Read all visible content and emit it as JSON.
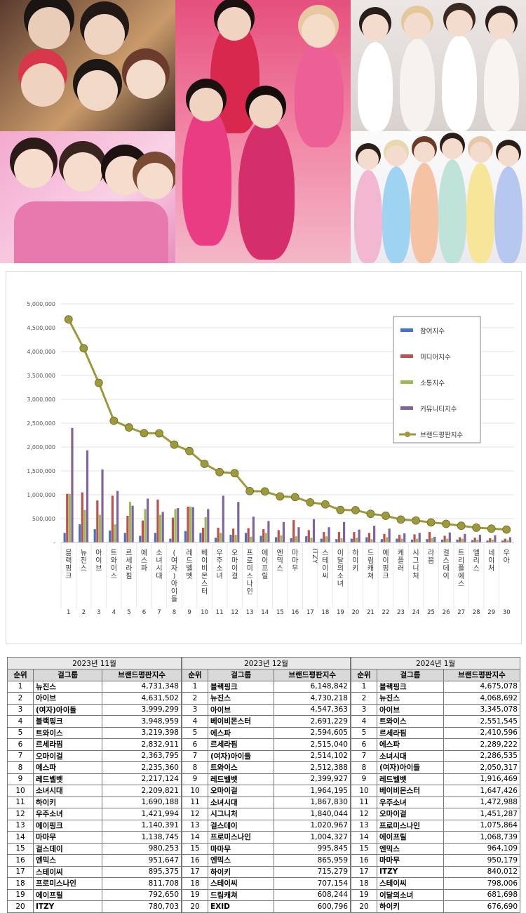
{
  "colors": {
    "participation": "#4472C4",
    "media": "#C0504D",
    "communication": "#9BBB59",
    "community": "#8064A2",
    "brand": "#9C9A3C"
  },
  "chart_data": {
    "type": "bar",
    "title": "",
    "ylim": [
      0,
      5000000
    ],
    "y_ticks": [
      "5,000,000",
      "4,500,000",
      "4,000,000",
      "3,500,000",
      "3,000,000",
      "2,500,000",
      "2,000,000",
      "1,500,000",
      "1,000,000",
      "500,000",
      "-"
    ],
    "legend_position": "top-right",
    "categories": [
      "블랙핑크",
      "뉴진스",
      "아이브",
      "트와이스",
      "르세라핌",
      "에스파",
      "소녀시대",
      "(여자)아이들",
      "레드벨벳",
      "베이비몬스터",
      "우주소녀",
      "오마이걸",
      "프로미스나인",
      "에이프릴",
      "엔믹스",
      "마마무",
      "ITZY",
      "스테이씨",
      "이달의소녀",
      "하이키",
      "드림캐쳐",
      "에이핑크",
      "케플러",
      "시그니처",
      "라붐",
      "걸스데이",
      "트리플에스",
      "엘리스",
      "네이처",
      "우아"
    ],
    "ranks": [
      "1",
      "2",
      "3",
      "4",
      "5",
      "6",
      "7",
      "8",
      "9",
      "10",
      "11",
      "12",
      "13",
      "14",
      "15",
      "16",
      "17",
      "18",
      "19",
      "20",
      "21",
      "22",
      "23",
      "24",
      "25",
      "26",
      "27",
      "28",
      "29",
      "30"
    ],
    "series": [
      {
        "name": "참여지수",
        "values": [
          200000,
          380000,
          280000,
          250000,
          200000,
          140000,
          200000,
          80000,
          240000,
          200000,
          100000,
          160000,
          200000,
          140000,
          110000,
          90000,
          130000,
          80000,
          70000,
          80000,
          110000,
          70000,
          80000,
          60000,
          70000,
          60000,
          60000,
          50000,
          40000,
          40000
        ]
      },
      {
        "name": "미디어지수",
        "values": [
          1020000,
          1050000,
          880000,
          980000,
          560000,
          460000,
          900000,
          520000,
          750000,
          310000,
          310000,
          290000,
          300000,
          280000,
          260000,
          470000,
          260000,
          220000,
          220000,
          220000,
          200000,
          180000,
          160000,
          170000,
          220000,
          140000,
          110000,
          100000,
          90000,
          80000
        ]
      },
      {
        "name": "소통지수",
        "values": [
          1020000,
          680000,
          580000,
          380000,
          850000,
          700000,
          580000,
          700000,
          750000,
          530000,
          200000,
          160000,
          120000,
          200000,
          150000,
          130000,
          100000,
          130000,
          90000,
          100000,
          70000,
          110000,
          80000,
          80000,
          90000,
          80000,
          80000,
          60000,
          60000,
          50000
        ]
      },
      {
        "name": "커뮤니티지수",
        "values": [
          2400000,
          1930000,
          1530000,
          1080000,
          770000,
          920000,
          640000,
          720000,
          740000,
          700000,
          980000,
          850000,
          540000,
          450000,
          430000,
          320000,
          490000,
          320000,
          430000,
          270000,
          350000,
          290000,
          190000,
          200000,
          120000,
          210000,
          180000,
          160000,
          150000,
          110000
        ]
      },
      {
        "name": "브랜드평판지수",
        "values": [
          4675078,
          4068692,
          3345078,
          2551545,
          2410596,
          2289222,
          2286535,
          2050317,
          1916469,
          1647426,
          1472988,
          1451287,
          1075864,
          1068739,
          964109,
          950179,
          840012,
          798006,
          681698,
          676690,
          600000,
          560000,
          480000,
          460000,
          420000,
          390000,
          350000,
          310000,
          290000,
          270000
        ]
      }
    ]
  },
  "tables": [
    {
      "month": "2023년 11월",
      "headers": [
        "순위",
        "걸그룹",
        "브랜드평판지수"
      ],
      "rows": [
        [
          "1",
          "뉴진스",
          "4,731,348"
        ],
        [
          "2",
          "아이브",
          "4,631,502"
        ],
        [
          "3",
          "(여자)아이들",
          "3,999,299"
        ],
        [
          "4",
          "블랙핑크",
          "3,948,959"
        ],
        [
          "5",
          "트와이스",
          "3,219,398"
        ],
        [
          "6",
          "르세라핌",
          "2,832,911"
        ],
        [
          "7",
          "오마이걸",
          "2,363,795"
        ],
        [
          "8",
          "에스파",
          "2,235,360"
        ],
        [
          "9",
          "레드벨벳",
          "2,217,124"
        ],
        [
          "10",
          "소녀시대",
          "2,209,821"
        ],
        [
          "11",
          "하이키",
          "1,690,188"
        ],
        [
          "12",
          "우주소녀",
          "1,421,994"
        ],
        [
          "13",
          "에이핑크",
          "1,140,391"
        ],
        [
          "14",
          "마마무",
          "1,138,745"
        ],
        [
          "15",
          "걸스데이",
          "980,253"
        ],
        [
          "16",
          "엔믹스",
          "951,647"
        ],
        [
          "17",
          "스테이씨",
          "895,375"
        ],
        [
          "18",
          "프로미스나인",
          "811,708"
        ],
        [
          "19",
          "에이프릴",
          "792,650"
        ],
        [
          "20",
          "ITZY",
          "780,703"
        ]
      ]
    },
    {
      "month": "2023년 12월",
      "headers": [
        "순위",
        "걸그룹",
        "브랜드평판지수"
      ],
      "rows": [
        [
          "1",
          "블랙핑크",
          "6,148,842"
        ],
        [
          "2",
          "뉴진스",
          "4,730,218"
        ],
        [
          "3",
          "아이브",
          "4,547,363"
        ],
        [
          "4",
          "베이비몬스터",
          "2,691,229"
        ],
        [
          "5",
          "에스파",
          "2,594,605"
        ],
        [
          "6",
          "르세라핌",
          "2,515,040"
        ],
        [
          "7",
          "(여자)아이들",
          "2,514,102"
        ],
        [
          "8",
          "트와이스",
          "2,512,388"
        ],
        [
          "9",
          "레드벨벳",
          "2,399,927"
        ],
        [
          "10",
          "오마이걸",
          "1,964,195"
        ],
        [
          "11",
          "소녀시대",
          "1,867,830"
        ],
        [
          "12",
          "시그니처",
          "1,840,044"
        ],
        [
          "13",
          "걸스데이",
          "1,020,967"
        ],
        [
          "14",
          "프로미스나인",
          "1,004,327"
        ],
        [
          "15",
          "마마무",
          "995,845"
        ],
        [
          "16",
          "엔믹스",
          "865,959"
        ],
        [
          "17",
          "하이키",
          "715,279"
        ],
        [
          "18",
          "스테이씨",
          "707,154"
        ],
        [
          "19",
          "드림캐쳐",
          "608,244"
        ],
        [
          "20",
          "EXID",
          "600,796"
        ]
      ]
    },
    {
      "month": "2024년 1월",
      "headers": [
        "순위",
        "걸그룹",
        "브랜드평판지수"
      ],
      "rows": [
        [
          "1",
          "블랙핑크",
          "4,675,078"
        ],
        [
          "2",
          "뉴진스",
          "4,068,692"
        ],
        [
          "3",
          "아이브",
          "3,345,078"
        ],
        [
          "4",
          "트와이스",
          "2,551,545"
        ],
        [
          "5",
          "르세라핌",
          "2,410,596"
        ],
        [
          "6",
          "에스파",
          "2,289,222"
        ],
        [
          "7",
          "소녀시대",
          "2,286,535"
        ],
        [
          "8",
          "(여자)아이들",
          "2,050,317"
        ],
        [
          "9",
          "레드벨벳",
          "1,916,469"
        ],
        [
          "10",
          "베이비몬스터",
          "1,647,426"
        ],
        [
          "11",
          "우주소녀",
          "1,472,988"
        ],
        [
          "12",
          "오마이걸",
          "1,451,287"
        ],
        [
          "13",
          "프로미스나인",
          "1,075,864"
        ],
        [
          "14",
          "에이프릴",
          "1,068,739"
        ],
        [
          "15",
          "엔믹스",
          "964,109"
        ],
        [
          "16",
          "마마무",
          "950,179"
        ],
        [
          "17",
          "ITZY",
          "840,012"
        ],
        [
          "18",
          "스테이씨",
          "798,006"
        ],
        [
          "19",
          "이달의소녀",
          "681,698"
        ],
        [
          "20",
          "하이키",
          "676,690"
        ]
      ]
    }
  ]
}
